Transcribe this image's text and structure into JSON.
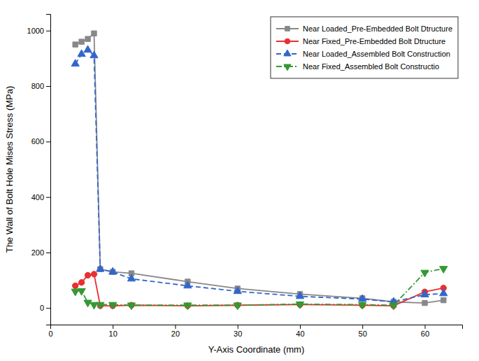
{
  "chart_data": {
    "type": "line",
    "xlabel": "Y-Axis Coordinate (mm)",
    "ylabel": "The Wall of Bolt Hole Mises Stress (MPa)",
    "x": [
      4,
      5,
      6,
      7,
      8,
      10,
      13,
      22,
      30,
      40,
      50,
      55,
      60,
      63
    ],
    "series": [
      {
        "name": "Near Loaded_Pre-Embedded Bolt Dtructure",
        "color": "#888888",
        "marker": "square",
        "line_style": "solid",
        "values": [
          950,
          960,
          970,
          990,
          140,
          130,
          125,
          95,
          70,
          50,
          35,
          22,
          18,
          28
        ]
      },
      {
        "name": "Near Fixed_Pre-Embedded Bolt Dtructure",
        "color": "#e83030",
        "marker": "circle",
        "line_style": "solid",
        "values": [
          80,
          92,
          118,
          122,
          8,
          8,
          10,
          8,
          10,
          12,
          10,
          8,
          58,
          72
        ]
      },
      {
        "name": "Near Loaded_Assembled Bolt Construction",
        "color": "#3366cc",
        "marker": "triangle-up",
        "line_style": "dashed",
        "values": [
          880,
          915,
          930,
          910,
          140,
          130,
          105,
          80,
          60,
          42,
          32,
          22,
          48,
          52
        ]
      },
      {
        "name": "Near Fixed_Assembled Bolt Constructio",
        "color": "#339933",
        "marker": "triangle-down",
        "line_style": "dashdot",
        "values": [
          60,
          62,
          20,
          12,
          12,
          12,
          10,
          10,
          10,
          14,
          12,
          10,
          128,
          142
        ]
      }
    ],
    "xlim": [
      0,
      66
    ],
    "ylim": [
      -60,
      1060
    ],
    "xticks": [
      0,
      10,
      20,
      30,
      40,
      50,
      60
    ],
    "yticks": [
      0,
      200,
      400,
      600,
      800,
      1000
    ],
    "legend": "upper right",
    "grid": false
  }
}
